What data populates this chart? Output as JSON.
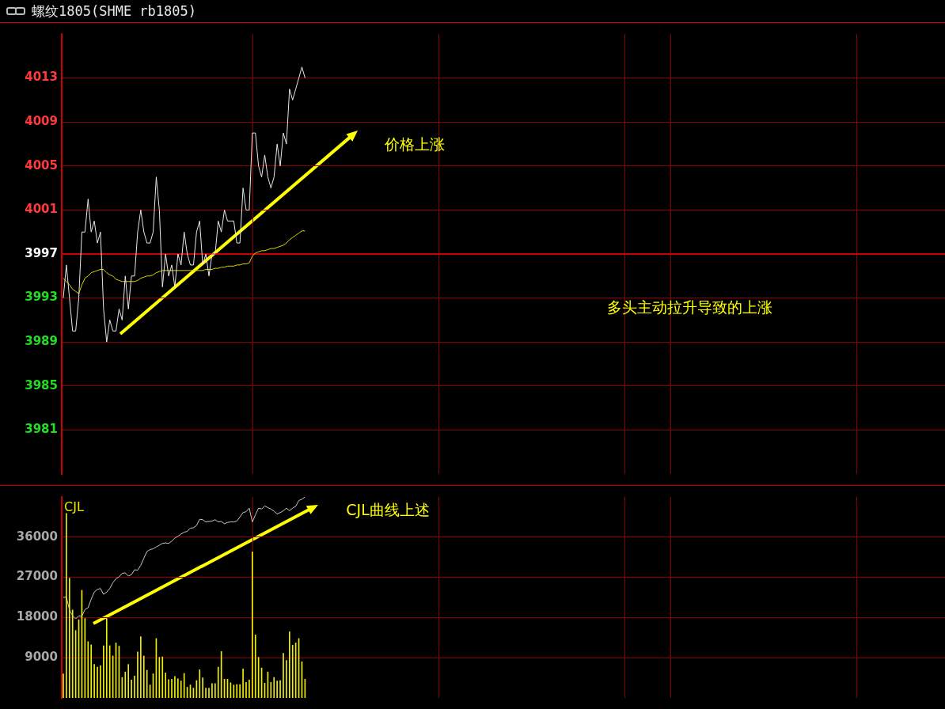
{
  "chart_data": [
    {
      "type": "line",
      "title": "螺纹1805(SHME rb1805)",
      "ylim": [
        3977,
        4017
      ],
      "yticks": [
        3981,
        3985,
        3989,
        3993,
        3997,
        4001,
        4005,
        4009,
        4013
      ],
      "grid": true,
      "tick_labels": "y",
      "marker": "none",
      "ref_lines": [
        {
          "axis": "y",
          "value": 3997,
          "color": "#cc0000"
        }
      ],
      "annotations": [
        "价格上涨",
        "多头主动拉升导致的上涨"
      ],
      "categories": [
        null,
        null,
        null,
        null,
        null,
        null,
        null,
        null,
        null,
        null,
        null,
        null,
        null,
        null,
        null,
        null,
        null,
        null,
        null,
        null,
        null,
        null,
        null,
        null,
        null,
        null,
        null,
        null,
        null,
        null,
        null,
        null,
        null,
        null,
        null,
        null,
        null,
        null,
        null,
        null,
        null,
        null,
        null,
        null,
        null,
        null,
        null,
        null,
        null,
        null,
        null,
        null,
        null,
        null,
        null,
        null,
        null,
        null,
        null,
        null,
        null,
        null,
        null,
        null,
        null,
        null,
        null,
        null,
        null,
        null,
        null,
        null,
        null,
        null,
        null,
        null,
        null,
        null,
        null,
        null,
        null,
        null,
        null,
        null,
        null,
        null,
        null,
        null,
        null,
        null,
        null,
        null,
        null,
        null,
        null,
        null,
        null,
        null,
        null,
        null,
        null,
        null,
        null,
        null,
        null,
        null,
        null,
        null,
        null,
        null,
        null,
        null,
        null,
        null,
        null,
        null,
        null,
        null,
        null,
        null,
        null,
        null,
        null,
        null,
        null,
        null,
        null,
        null,
        null,
        null,
        null,
        null,
        null,
        null,
        null,
        null,
        null,
        null,
        null,
        null,
        null,
        null,
        null,
        null,
        null,
        null,
        null,
        null,
        null,
        null,
        null,
        null,
        null,
        null,
        null,
        null,
        null,
        null,
        null,
        null,
        null,
        null,
        null,
        null,
        null,
        null,
        null,
        null,
        null,
        null,
        null,
        null,
        null,
        null,
        null,
        null,
        null,
        null,
        null,
        null,
        null,
        null,
        null,
        null,
        null,
        null,
        null,
        null,
        null,
        null,
        null,
        null,
        null,
        null,
        null,
        null,
        null,
        null,
        null,
        null,
        null,
        null,
        null,
        null,
        null,
        null,
        null,
        null,
        null,
        null,
        null,
        null,
        null,
        null,
        null,
        null,
        null,
        null,
        null,
        null,
        null,
        null,
        null,
        null,
        null,
        null,
        null,
        null,
        null,
        null,
        null,
        null,
        null,
        null,
        null,
        null,
        null,
        null,
        null,
        null,
        null,
        null,
        null,
        null,
        null,
        null,
        null,
        null,
        null,
        null,
        null,
        null,
        null,
        null,
        null,
        null,
        null,
        null,
        null,
        null,
        null,
        null,
        null,
        null,
        null,
        null,
        null,
        null,
        null,
        null,
        null,
        null,
        null,
        null,
        null,
        null,
        null,
        null,
        null,
        null,
        null,
        null,
        null,
        null,
        null
      ],
      "series": [
        {
          "color": "#e8e8e8",
          "values": [
            3993,
            3996,
            3993,
            3990,
            3990,
            3993,
            3999,
            3999,
            4002,
            3999,
            4000,
            3998,
            3999,
            3992,
            3989,
            3991,
            3990,
            3990,
            3992,
            3991,
            3995,
            3992,
            3995,
            3995,
            3999,
            4001,
            3999,
            3998,
            3998,
            3999,
            4004,
            4001,
            3994,
            3997,
            3995,
            3996,
            3994,
            3997,
            3996,
            3999,
            3997,
            3996,
            3996,
            3999,
            4000,
            3996,
            3997,
            3995,
            3997,
            3997,
            4000,
            3999,
            4001,
            4000,
            4000,
            4000,
            3998,
            3998,
            4003,
            4001,
            4001,
            4008,
            4008,
            4005,
            4004,
            4006,
            4004,
            4003,
            4004,
            4007,
            4005,
            4008,
            4007,
            4012,
            4011,
            4012,
            4013,
            4014,
            4013,
            null,
            null,
            null,
            null,
            null,
            null,
            null,
            null,
            null,
            null,
            null,
            null,
            null,
            null,
            null,
            null,
            null,
            null,
            null,
            null,
            null,
            null,
            null,
            null,
            null,
            null,
            null,
            null,
            null,
            null,
            null,
            null,
            null,
            null,
            null,
            null,
            null,
            null,
            null,
            null,
            null,
            null,
            null,
            null,
            null,
            null,
            null,
            null,
            null,
            null,
            null,
            null,
            null,
            null,
            null,
            null,
            null,
            null,
            null,
            null,
            null,
            null,
            null,
            null,
            null,
            null,
            null,
            null,
            null,
            null,
            null,
            null,
            null,
            null,
            null,
            null,
            null,
            null,
            null,
            null,
            null,
            null,
            null,
            null,
            null,
            null,
            null,
            null,
            null,
            null,
            null,
            null,
            null,
            null,
            null,
            null,
            null,
            null,
            null,
            null,
            null,
            null,
            null,
            null,
            null,
            null,
            null,
            null,
            null,
            null,
            null,
            null,
            null,
            null,
            null,
            null,
            null,
            null,
            null,
            null,
            null,
            null,
            null,
            null,
            null,
            null,
            null,
            null,
            null,
            null,
            null,
            null,
            null,
            null,
            null,
            null,
            null,
            null,
            null,
            null,
            null,
            null,
            null,
            null,
            null,
            null,
            null,
            null,
            null,
            null,
            null,
            null,
            null,
            null,
            null,
            null,
            null,
            null,
            null,
            null,
            null,
            null,
            null,
            null,
            null,
            null,
            null,
            null,
            null,
            null,
            null,
            null,
            null,
            null,
            null,
            null,
            null,
            null,
            null,
            null,
            null,
            null,
            null,
            null,
            null,
            null,
            null,
            null,
            null,
            null,
            null,
            null,
            null,
            null,
            null,
            null,
            null,
            null,
            null,
            null,
            null,
            null,
            null,
            null,
            null,
            null
          ]
        },
        {
          "color": "#d8d800",
          "values": [
            3994.8,
            3994.5,
            3994.2,
            3993.8,
            3993.6,
            3993.4,
            3994.2,
            3994.8,
            3995.0,
            3995.3,
            3995.4,
            3995.5,
            3995.6,
            3995.6,
            3995.3,
            3995.1,
            3995.0,
            3994.7,
            3994.6,
            3994.5,
            3994.5,
            3994.5,
            3994.5,
            3994.5,
            3994.6,
            3994.8,
            3994.9,
            3995.0,
            3995.0,
            3995.1,
            3995.3,
            3995.4,
            3995.5,
            3995.5,
            3995.5,
            3995.5,
            3995.5,
            3995.5,
            3995.5,
            3995.5,
            3995.5,
            3995.5,
            3995.5,
            3995.5,
            3995.5,
            3995.5,
            3995.6,
            3995.6,
            3995.6,
            3995.7,
            3995.7,
            3995.8,
            3995.8,
            3995.9,
            3995.9,
            3995.9,
            3996.0,
            3996.0,
            3996.1,
            3996.1,
            3996.2,
            3996.8,
            3997.1,
            3997.2,
            3997.3,
            3997.3,
            3997.4,
            3997.5,
            3997.5,
            3997.6,
            3997.7,
            3997.8,
            3998.0,
            3998.3,
            3998.5,
            3998.7,
            3998.9,
            3999.1,
            3999.1,
            null,
            null,
            null,
            null,
            null,
            null,
            null,
            null,
            null,
            null,
            null,
            null,
            null,
            null,
            null,
            null,
            null,
            null,
            null,
            null,
            null,
            null,
            null,
            null,
            null,
            null,
            null,
            null,
            null,
            null,
            null,
            null,
            null,
            null,
            null,
            null,
            null,
            null,
            null,
            null,
            null,
            null,
            null,
            null,
            null,
            null,
            null,
            null,
            null,
            null,
            null,
            null,
            null,
            null,
            null,
            null,
            null,
            null,
            null,
            null,
            null,
            null,
            null,
            null,
            null,
            null,
            null,
            null,
            null,
            null,
            null,
            null,
            null,
            null,
            null,
            null,
            null,
            null,
            null,
            null,
            null,
            null,
            null,
            null,
            null,
            null,
            null,
            null,
            null,
            null,
            null,
            null,
            null,
            null,
            null,
            null,
            null,
            null,
            null,
            null,
            null,
            null,
            null,
            null,
            null,
            null,
            null,
            null,
            null,
            null,
            null,
            null,
            null,
            null,
            null,
            null,
            null,
            null,
            null,
            null,
            null,
            null,
            null,
            null,
            null,
            null,
            null,
            null,
            null,
            null,
            null,
            null,
            null,
            null,
            null,
            null,
            null,
            null,
            null,
            null,
            null,
            null,
            null,
            null,
            null,
            null,
            null,
            null,
            null,
            null,
            null,
            null,
            null,
            null,
            null,
            null,
            null,
            null,
            null,
            null,
            null,
            null,
            null,
            null,
            null,
            null,
            null,
            null,
            null,
            null,
            null,
            null,
            null,
            null,
            null,
            null,
            null,
            null,
            null,
            null,
            null,
            null,
            null,
            null,
            null,
            null,
            null,
            null,
            null,
            null,
            null,
            null,
            null,
            null,
            null,
            null,
            null,
            null,
            null,
            null,
            null,
            null,
            null,
            null,
            null,
            null
          ]
        }
      ]
    },
    {
      "type": "bar",
      "title": "CJL",
      "ylim": [
        0,
        45000
      ],
      "yticks": [
        9000,
        18000,
        27000,
        36000
      ],
      "grid": true,
      "tick_labels": "y",
      "marker": "none",
      "annotations": [
        "CJL曲线上述"
      ],
      "categories": [
        null,
        null,
        null,
        null,
        null,
        null,
        null,
        null,
        null,
        null,
        null,
        null,
        null,
        null,
        null,
        null,
        null,
        null,
        null,
        null,
        null,
        null,
        null,
        null,
        null,
        null,
        null,
        null,
        null,
        null,
        null,
        null,
        null,
        null,
        null,
        null,
        null,
        null,
        null,
        null,
        null,
        null,
        null,
        null,
        null,
        null,
        null,
        null,
        null,
        null,
        null,
        null,
        null,
        null,
        null,
        null,
        null,
        null,
        null,
        null,
        null,
        null,
        null,
        null,
        null,
        null,
        null,
        null,
        null,
        null,
        null,
        null,
        null,
        null,
        null,
        null,
        null,
        null,
        null,
        null,
        null,
        null,
        null,
        null,
        null,
        null,
        null,
        null,
        null,
        null,
        null,
        null,
        null,
        null,
        null,
        null,
        null,
        null,
        null,
        null,
        null,
        null,
        null,
        null,
        null,
        null,
        null,
        null,
        null,
        null,
        null,
        null,
        null,
        null,
        null,
        null,
        null,
        null,
        null,
        null,
        null,
        null,
        null,
        null,
        null,
        null,
        null,
        null,
        null,
        null,
        null,
        null,
        null,
        null,
        null,
        null,
        null,
        null,
        null,
        null,
        null,
        null,
        null,
        null,
        null,
        null,
        null,
        null,
        null,
        null,
        null,
        null,
        null,
        null,
        null,
        null,
        null,
        null,
        null,
        null,
        null,
        null,
        null,
        null,
        null,
        null,
        null,
        null,
        null,
        null,
        null,
        null,
        null,
        null,
        null,
        null,
        null,
        null,
        null,
        null,
        null,
        null,
        null,
        null,
        null,
        null,
        null,
        null,
        null,
        null,
        null,
        null,
        null,
        null,
        null,
        null,
        null,
        null,
        null,
        null,
        null,
        null,
        null,
        null,
        null,
        null,
        null,
        null,
        null,
        null,
        null,
        null,
        null,
        null,
        null,
        null,
        null,
        null,
        null,
        null,
        null,
        null,
        null,
        null,
        null,
        null,
        null,
        null,
        null,
        null,
        null,
        null,
        null,
        null,
        null,
        null,
        null,
        null,
        null,
        null,
        null,
        null,
        null,
        null,
        null,
        null,
        null,
        null,
        null,
        null,
        null,
        null,
        null,
        null,
        null,
        null,
        null,
        null,
        null,
        null,
        null,
        null,
        null,
        null,
        null,
        null,
        null,
        null,
        null,
        null,
        null,
        null,
        null,
        null,
        null,
        null,
        null,
        null,
        null,
        null,
        null,
        null,
        null,
        null,
        null
      ],
      "series": [
        {
          "type": "bar",
          "color": "#f0f000",
          "values": [
            5400,
            41300,
            26800,
            19700,
            15100,
            17500,
            24100,
            17800,
            12600,
            11900,
            7500,
            6900,
            7200,
            11700,
            17800,
            11700,
            9400,
            12300,
            11600,
            4600,
            5800,
            7500,
            4000,
            4900,
            10300,
            13700,
            9400,
            6200,
            2900,
            5400,
            13300,
            9100,
            9200,
            5600,
            4100,
            4200,
            4800,
            4300,
            3800,
            5500,
            2400,
            2900,
            2200,
            3900,
            6300,
            4500,
            2200,
            2200,
            3200,
            3200,
            6900,
            10400,
            4200,
            4200,
            3400,
            2900,
            3000,
            3000,
            6500,
            3500,
            4000,
            32700,
            14100,
            9100,
            6700,
            3300,
            5800,
            3500,
            4600,
            3800,
            3900,
            10000,
            8400,
            14800,
            11800,
            12300,
            13300,
            8100,
            4200,
            null,
            null,
            null,
            null,
            null,
            null,
            null,
            null,
            null,
            null,
            null,
            null,
            null,
            null,
            null,
            null,
            null,
            null,
            null,
            null,
            null,
            null,
            null,
            null,
            null,
            null,
            null,
            null,
            null,
            null,
            null,
            null,
            null,
            null,
            null,
            null,
            null,
            null,
            null,
            null,
            null,
            null,
            null,
            null,
            null,
            null,
            null,
            null,
            null,
            null,
            null,
            null,
            null,
            null,
            null,
            null,
            null,
            null,
            null,
            null,
            null,
            null,
            null,
            null,
            null,
            null,
            null,
            null,
            null,
            null,
            null,
            null,
            null,
            null,
            null,
            null,
            null,
            null,
            null,
            null,
            null,
            null,
            null,
            null,
            null,
            null,
            null,
            null,
            null,
            null,
            null,
            null,
            null,
            null,
            null,
            null,
            null,
            null,
            null,
            null,
            null,
            null,
            null,
            null,
            null,
            null,
            null,
            null,
            null,
            null,
            null,
            null,
            null,
            null,
            null,
            null,
            null,
            null,
            null,
            null,
            null,
            null,
            null,
            null,
            null,
            null,
            null,
            null,
            null,
            null,
            null,
            null,
            null,
            null,
            null,
            null,
            null,
            null,
            null,
            null,
            null,
            null,
            null,
            null,
            null,
            null,
            null,
            null,
            null,
            null,
            null,
            null,
            null,
            null,
            null,
            null,
            null,
            null,
            null,
            null,
            null,
            null,
            null,
            null,
            null,
            null,
            null,
            null,
            null,
            null,
            null,
            null,
            null,
            null,
            null,
            null,
            null,
            null,
            null,
            null,
            null,
            null,
            null,
            null,
            null,
            null,
            null,
            null,
            null,
            null,
            null,
            null,
            null,
            null,
            null,
            null,
            null,
            null,
            null,
            null,
            null,
            null,
            null,
            null,
            null,
            null
          ]
        },
        {
          "type": "line",
          "color": "#c8c8c8",
          "values": [
            22500,
            22600,
            19700,
            18400,
            17700,
            18400,
            18300,
            19800,
            20200,
            22100,
            23700,
            24300,
            24500,
            23200,
            23700,
            24500,
            25800,
            26700,
            27100,
            27900,
            28000,
            27300,
            27600,
            28700,
            28600,
            29700,
            31300,
            32800,
            33200,
            33400,
            33800,
            34200,
            34600,
            34700,
            34600,
            35100,
            35800,
            36200,
            36700,
            37100,
            37300,
            38000,
            38100,
            38600,
            40000,
            39900,
            39400,
            39500,
            39600,
            39900,
            39400,
            39500,
            39000,
            39300,
            39400,
            39400,
            39600,
            40500,
            41500,
            41700,
            42500,
            39400,
            41000,
            42500,
            42300,
            43000,
            42600,
            42300,
            41800,
            41200,
            41500,
            41900,
            42500,
            41900,
            42500,
            42900,
            44200,
            44500,
            45000,
            null,
            null,
            null,
            null,
            null,
            null,
            null,
            null,
            null,
            null,
            null,
            null,
            null,
            null,
            null,
            null,
            null,
            null,
            null,
            null,
            null,
            null,
            null,
            null,
            null,
            null,
            null,
            null,
            null,
            null,
            null,
            null,
            null,
            null,
            null,
            null,
            null,
            null,
            null,
            null,
            null,
            null,
            null,
            null,
            null,
            null,
            null,
            null,
            null,
            null,
            null,
            null,
            null,
            null,
            null,
            null,
            null,
            null,
            null,
            null,
            null,
            null,
            null,
            null,
            null,
            null,
            null,
            null,
            null,
            null,
            null,
            null,
            null,
            null,
            null,
            null,
            null,
            null,
            null,
            null,
            null,
            null,
            null,
            null,
            null,
            null,
            null,
            null,
            null,
            null,
            null,
            null,
            null,
            null,
            null,
            null,
            null,
            null,
            null,
            null,
            null,
            null,
            null,
            null,
            null,
            null,
            null,
            null,
            null,
            null,
            null,
            null,
            null,
            null,
            null,
            null,
            null,
            null,
            null,
            null,
            null,
            null,
            null,
            null,
            null,
            null,
            null,
            null,
            null,
            null,
            null,
            null,
            null,
            null,
            null,
            null,
            null,
            null,
            null,
            null,
            null,
            null,
            null,
            null,
            null,
            null,
            null,
            null,
            null,
            null,
            null,
            null,
            null,
            null,
            null,
            null,
            null,
            null,
            null,
            null,
            null,
            null,
            null,
            null,
            null,
            null,
            null,
            null,
            null,
            null,
            null,
            null,
            null,
            null,
            null,
            null,
            null,
            null,
            null,
            null,
            null,
            null,
            null,
            null,
            null,
            null,
            null,
            null,
            null,
            null,
            null,
            null,
            null,
            null,
            null,
            null,
            null,
            null,
            null,
            null,
            null,
            null,
            null,
            null,
            null,
            null
          ]
        }
      ]
    }
  ]
}
